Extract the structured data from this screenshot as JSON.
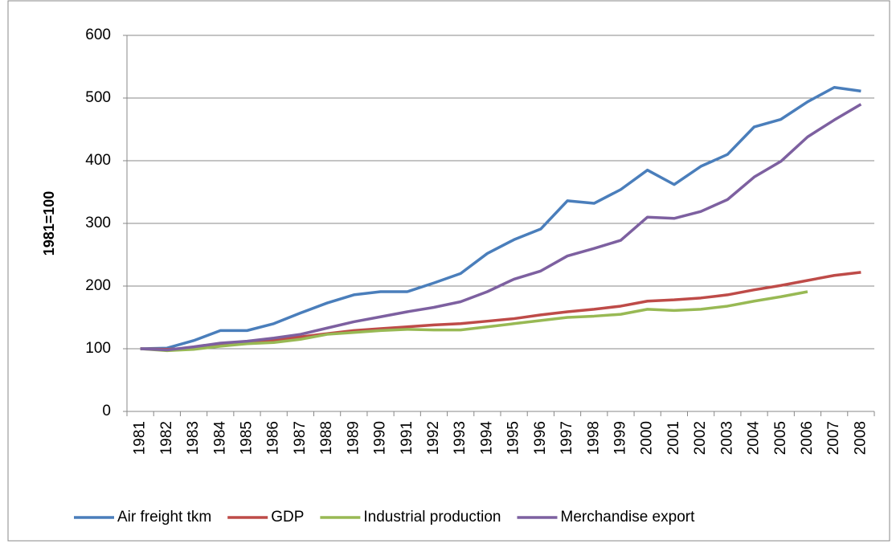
{
  "chart_data": {
    "type": "line",
    "y_label": "1981=100",
    "categories": [
      "1981",
      "1982",
      "1983",
      "1984",
      "1985",
      "1986",
      "1987",
      "1988",
      "1989",
      "1990",
      "1991",
      "1992",
      "1993",
      "1994",
      "1995",
      "1996",
      "1997",
      "1998",
      "1999",
      "2000",
      "2001",
      "2002",
      "2003",
      "2004",
      "2005",
      "2006",
      "2007",
      "2008"
    ],
    "series": [
      {
        "name": "Air freight tkm",
        "color": "#4a7ebb",
        "values": [
          100,
          101,
          113,
          129,
          129,
          140,
          157,
          173,
          186,
          191,
          191,
          205,
          220,
          252,
          274,
          291,
          336,
          332,
          354,
          385,
          362,
          391,
          410,
          454,
          466,
          494,
          517,
          511
        ]
      },
      {
        "name": "GDP",
        "color": "#be4b48",
        "values": [
          100,
          99,
          101,
          106,
          110,
          114,
          119,
          124,
          129,
          132,
          135,
          138,
          140,
          144,
          148,
          154,
          159,
          163,
          168,
          176,
          178,
          181,
          186,
          194,
          201,
          209,
          217,
          222
        ]
      },
      {
        "name": "Industrial production",
        "color": "#98b954",
        "values": [
          100,
          97,
          99,
          104,
          108,
          110,
          115,
          123,
          126,
          129,
          131,
          130,
          130,
          135,
          140,
          145,
          150,
          152,
          155,
          163,
          161,
          163,
          168,
          176,
          183,
          191,
          null,
          null
        ]
      },
      {
        "name": "Merchandise export",
        "color": "#7d60a0",
        "values": [
          100,
          98,
          103,
          109,
          112,
          117,
          123,
          133,
          143,
          151,
          159,
          166,
          175,
          191,
          211,
          224,
          248,
          260,
          273,
          310,
          308,
          319,
          338,
          374,
          399,
          438,
          465,
          490
        ]
      }
    ],
    "ylim": [
      0,
      600
    ],
    "yticks": [
      0,
      100,
      200,
      300,
      400,
      500,
      600
    ],
    "grid": true,
    "legend": "bottom"
  }
}
